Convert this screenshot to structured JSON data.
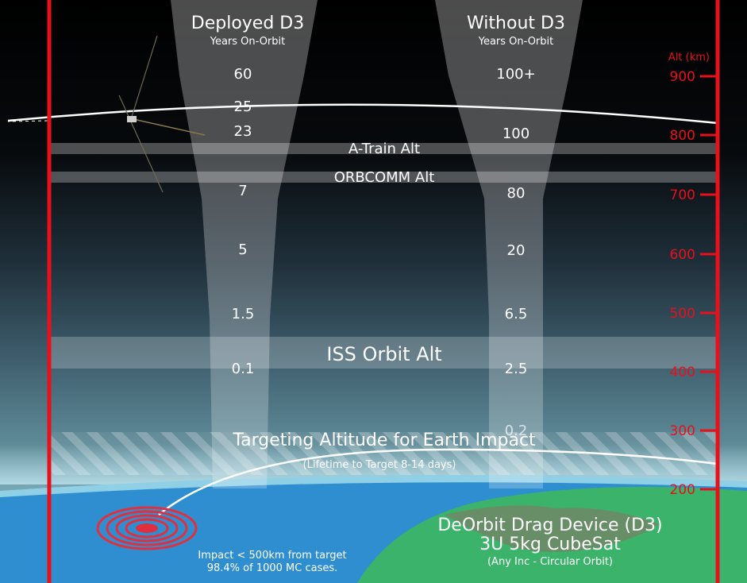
{
  "columns": {
    "deployed": {
      "title": "Deployed D3",
      "subtitle": "Years On-Orbit",
      "values": [
        "60",
        "25",
        "23",
        "7",
        "5",
        "1.5",
        "0.1"
      ]
    },
    "without": {
      "title": "Without D3",
      "subtitle": "Years On-Orbit",
      "values": [
        "100+",
        "100",
        "80",
        "20",
        "6.5",
        "2.5",
        "0.2"
      ]
    }
  },
  "axis": {
    "title": "Alt (km)",
    "ticks": [
      "900",
      "800",
      "700",
      "600",
      "500",
      "400",
      "300",
      "200"
    ]
  },
  "bands": {
    "atrain": "A-Train Alt",
    "orbcomm": "ORBCOMM Alt",
    "iss": "ISS Orbit Alt"
  },
  "targeting": {
    "title": "Targeting Altitude for Earth Impact",
    "subtitle": "(Lifetime to Target 8-14 days)"
  },
  "impact": {
    "line1": "Impact < 500km from target",
    "line2": "98.4% of 1000 MC cases."
  },
  "device": {
    "line1": "DeOrbit Drag Device (D3)",
    "line2": "3U 5kg CubeSat",
    "line3": "(Any Inc - Circular Orbit)"
  },
  "colors": {
    "axis_red": "#e8101a",
    "ocean": "#2f8ed0",
    "land": "#3cb36a"
  }
}
